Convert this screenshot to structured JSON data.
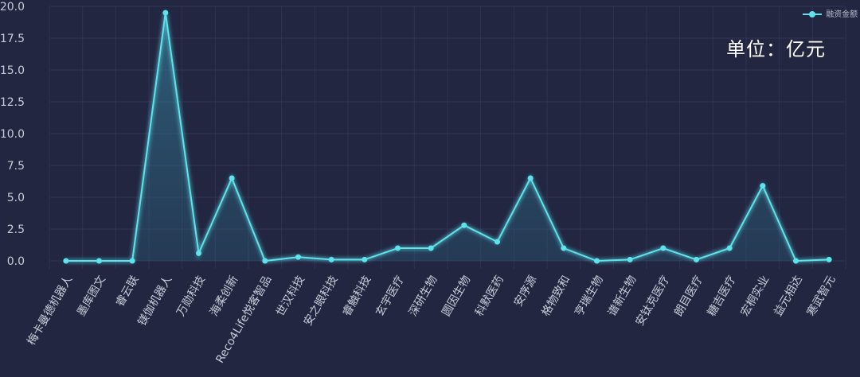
{
  "chart_data": {
    "type": "line",
    "title": "",
    "unit_label": "单位：亿元",
    "legend": [
      "融资金额"
    ],
    "legend_placement": "top-right",
    "xlabel": "",
    "ylabel": "",
    "ylim": [
      0,
      20
    ],
    "yticks": [
      "0.0",
      "2.5",
      "5.0",
      "7.5",
      "10.0",
      "12.5",
      "15.0",
      "17.5",
      "20.0"
    ],
    "grid": true,
    "categories": [
      "梅卡曼德机器人",
      "墨库图文",
      "睿云联",
      "镁伽机器人",
      "万勋科技",
      "海柔创新",
      "Reco4Life悦客智品",
      "世汉科技",
      "安之眼科技",
      "睿触科技",
      "玄宇医疗",
      "深研生物",
      "圆因生物",
      "科默医药",
      "安序源",
      "格物致和",
      "亨瑞生物",
      "谱新生物",
      "安钛克医疗",
      "朗目医疗",
      "糖吉医疗",
      "宏桐实业",
      "益元相达",
      "寒武智元"
    ],
    "series": [
      {
        "name": "融资金额",
        "values": [
          0,
          0,
          0,
          19.5,
          0.6,
          6.5,
          0,
          0.3,
          0.1,
          0.1,
          1.0,
          1.0,
          2.8,
          1.5,
          6.5,
          1.0,
          0,
          0.1,
          1.0,
          0.1,
          1.0,
          5.9,
          0,
          0.1
        ]
      }
    ],
    "colors": {
      "line": "#5ee3ec",
      "background": "#222641",
      "grid": "#2e3456",
      "text": "#c9ccd8"
    }
  }
}
